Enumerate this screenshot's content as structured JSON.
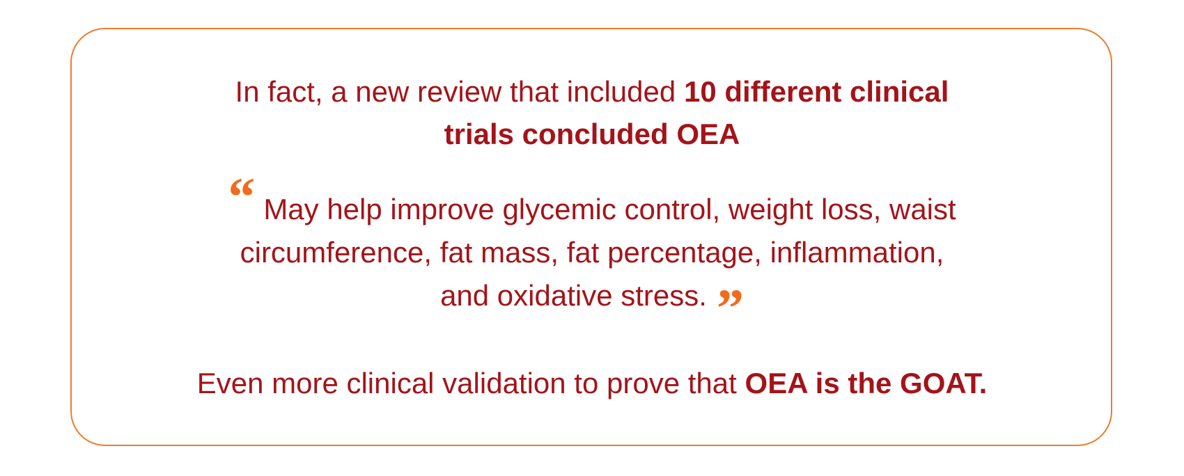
{
  "intro": {
    "lines": [
      [
        {
          "text": "In fact, a new review that included",
          "bold": false
        },
        {
          "text": "10 different clinical",
          "bold": true
        }
      ],
      [
        {
          "text": "trials concluded OEA",
          "bold": true
        }
      ]
    ]
  },
  "quote": {
    "open_mark": "“",
    "lines": [
      "May help improve glycemic control, weight loss, waist",
      "circumference, fat mass, fat percentage, inflammation,",
      "and oxidative stress."
    ],
    "close_mark": "”"
  },
  "closing": {
    "segments": [
      {
        "text": "Even more clinical validation to prove that",
        "bold": false
      },
      {
        "text": "OEA is the GOAT.",
        "bold": true
      }
    ]
  }
}
